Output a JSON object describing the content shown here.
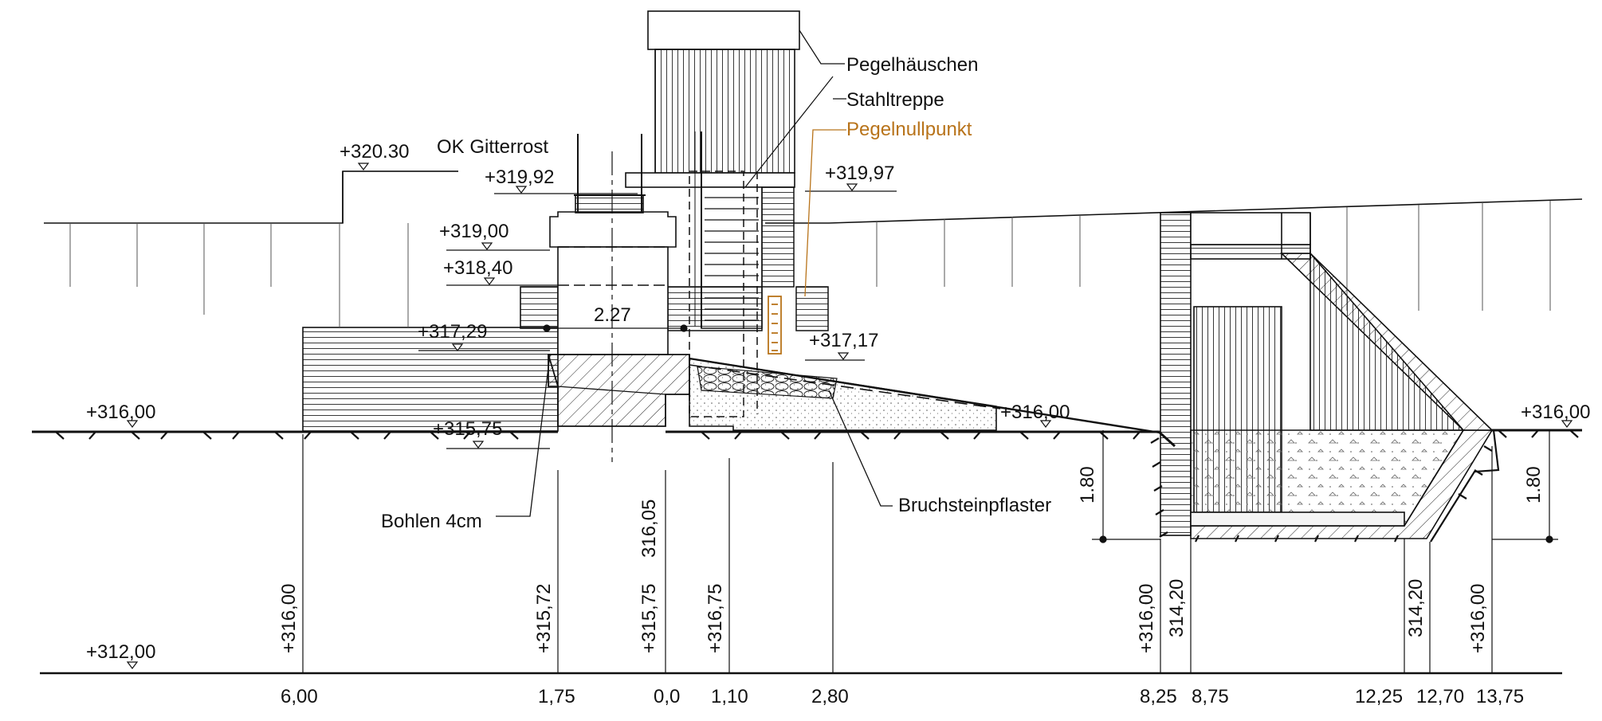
{
  "labels": {
    "pegelhaeuschen": "Pegelhäuschen",
    "stahltreppe": "Stahltreppe",
    "pegelnullpunkt": "Pegelnullpunkt",
    "ok_gitterrost": "OK Gitterrost",
    "bohlen": "Bohlen 4cm",
    "bruchsteinpflaster": "Bruchsteinpflaster",
    "span": "2.27"
  },
  "elevations": {
    "e32030": "+320.30",
    "e31992": "+319,92",
    "e31997": "+319,97",
    "e31900": "+319,00",
    "e31840": "+318,40",
    "e31729": "+317,29",
    "e31717": "+317,17",
    "e31600_left": "+316,00",
    "e31600_mid": "+316,00",
    "e31600_right": "+316,00",
    "e31575": "+315,75",
    "e31200": "+312,00"
  },
  "vertical_labels": {
    "v1": "+316,00",
    "v2": "+315,72",
    "v3": "+315,75",
    "v4": "316,05",
    "v5": "+316,75",
    "v6": "+316,00",
    "v7": "314,20",
    "v8": "314,20",
    "v9": "+316,00",
    "depth_left": "1.80",
    "depth_right": "1.80"
  },
  "stations": [
    "6,00",
    "1,75",
    "0,0",
    "1,10",
    "2,80",
    "8,25",
    "8,75",
    "12,25",
    "12,70",
    "13,75"
  ],
  "colors": {
    "line": "#111111",
    "accent": "#b8731a",
    "fill_light": "#f4f4f4"
  }
}
